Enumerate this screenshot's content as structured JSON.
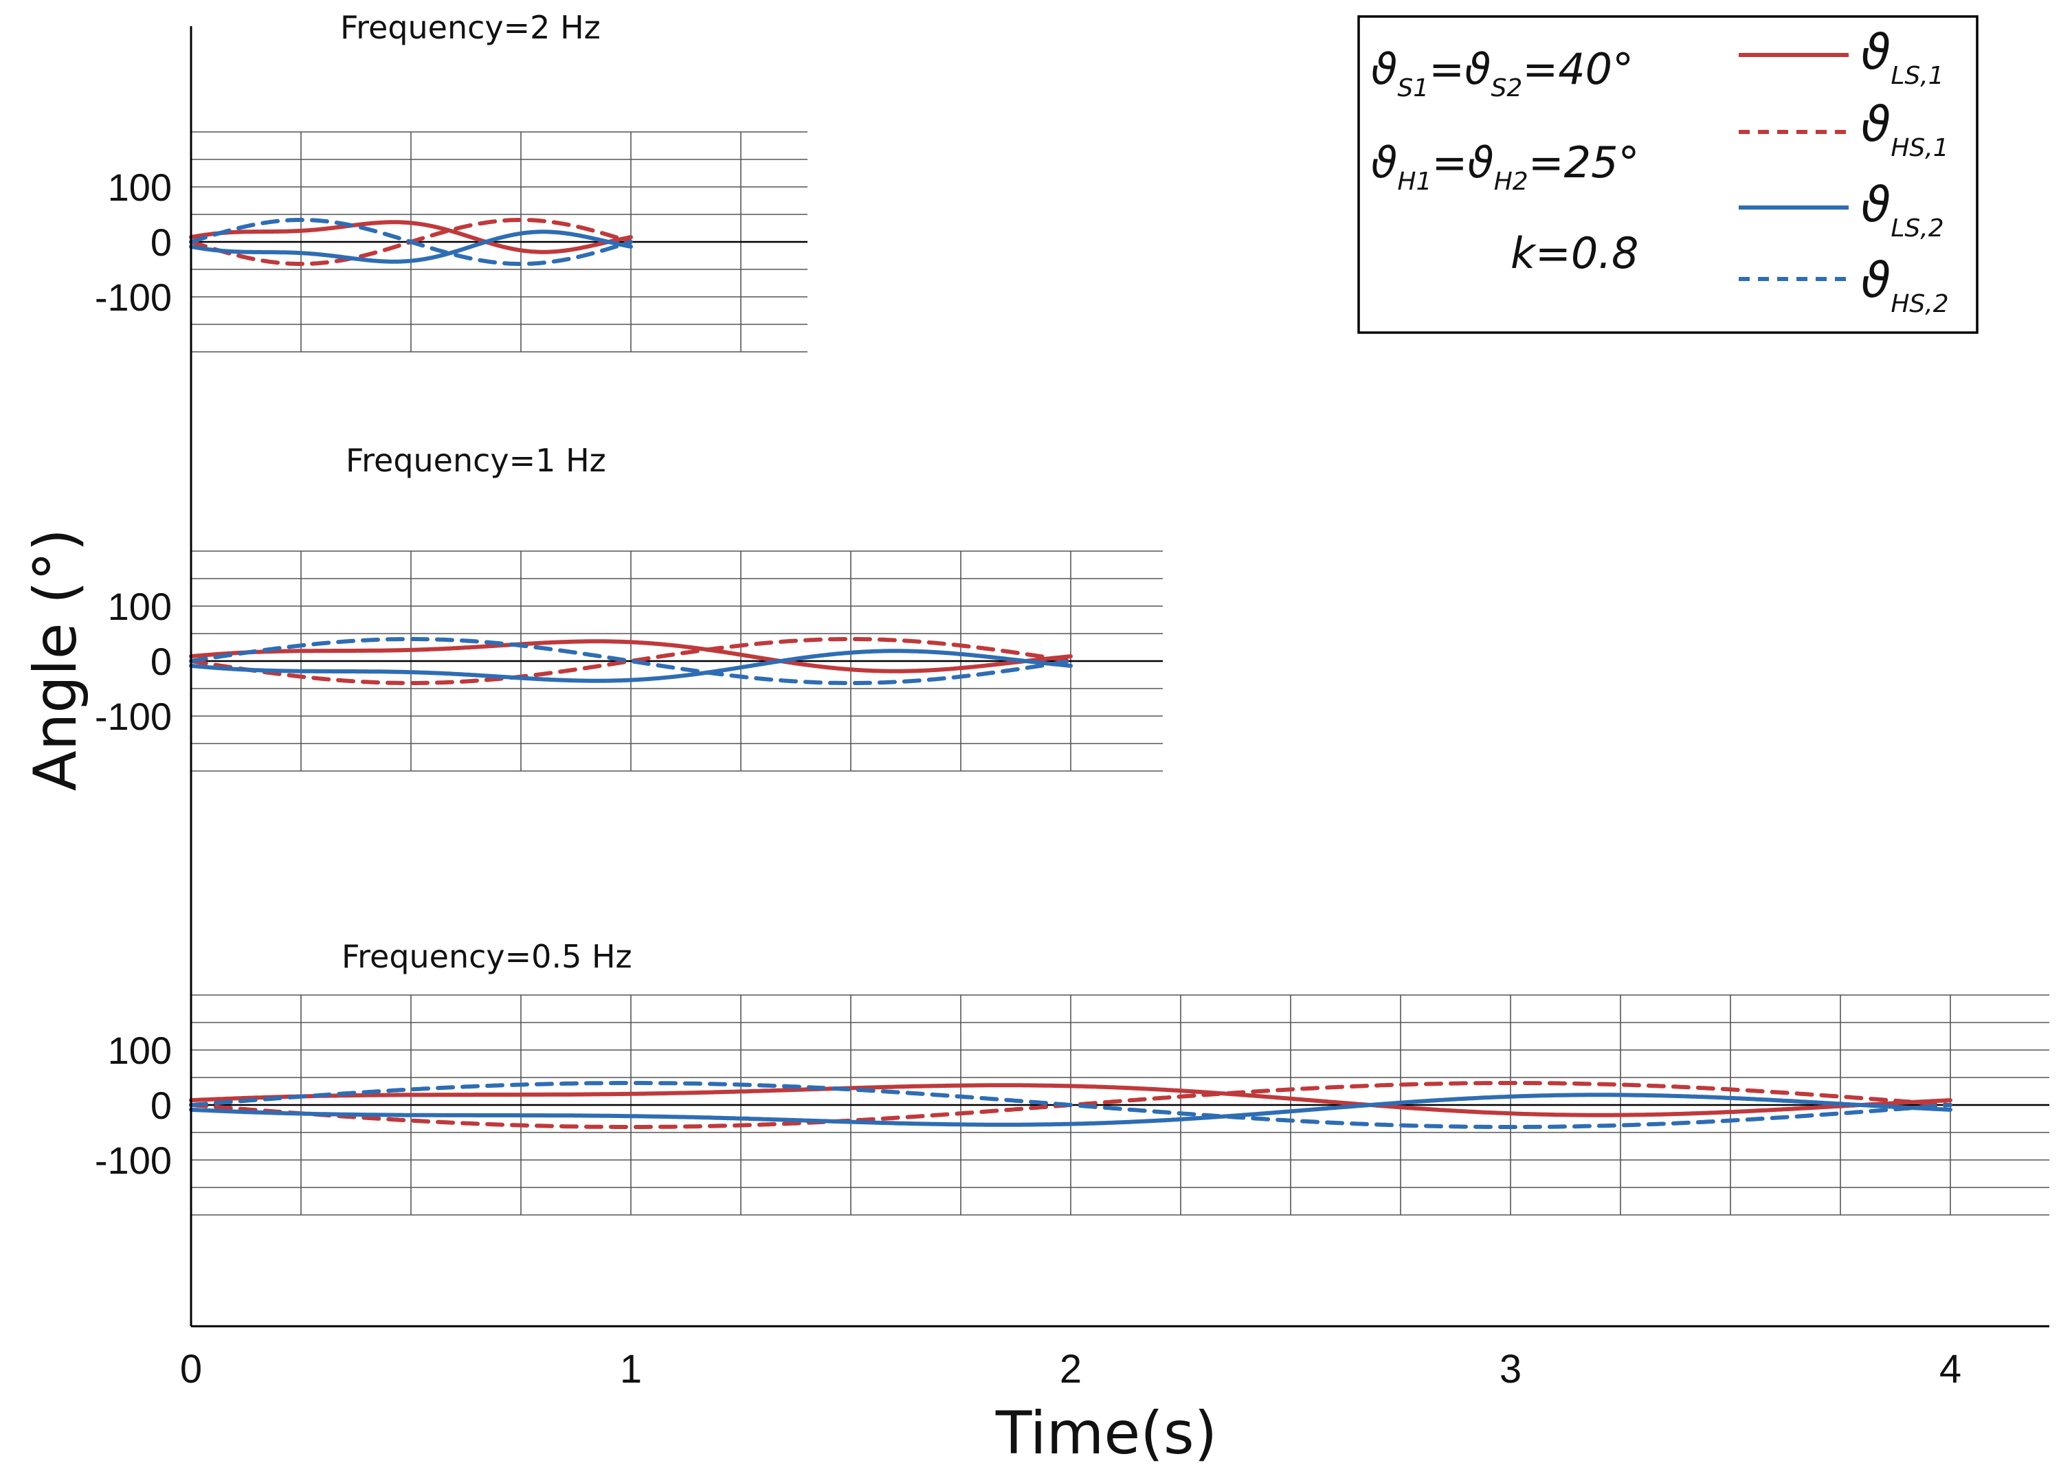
{
  "chart_data": {
    "type": "line",
    "y_axis_title": "Angle (°)",
    "x_axis_title": "Time(s)",
    "x_ticks": [
      "0",
      "1",
      "2",
      "3",
      "4"
    ],
    "grid": true,
    "parameters": {
      "line1": {
        "pre": "ϑ",
        "s1": "S1",
        "mid": "=ϑ",
        "s2": "S2",
        "post": "=40°"
      },
      "line2": {
        "pre": "ϑ",
        "s1": "H1",
        "mid": "=ϑ",
        "s2": "H2",
        "post": "=25°"
      },
      "line3": "k=0.8"
    },
    "legend": [
      {
        "symbol": "ϑ",
        "sub": "LS,1",
        "color": "#c0393b",
        "dash": "solid"
      },
      {
        "symbol": "ϑ",
        "sub": "HS,1",
        "color": "#c0393b",
        "dash": "dashed"
      },
      {
        "symbol": "ϑ",
        "sub": "LS,2",
        "color": "#2e6db4",
        "dash": "solid"
      },
      {
        "symbol": "ϑ",
        "sub": "HS,2",
        "color": "#2e6db4",
        "dash": "dashed"
      }
    ],
    "model": {
      "theta_S_deg": 40,
      "theta_H_deg": 25,
      "k": 0.8
    },
    "panels": [
      {
        "title": "Frequency=2 Hz",
        "frequency_hz": 2,
        "x_range": [
          0,
          1
        ],
        "ylim": [
          -200,
          200
        ],
        "y_tick_labels": [
          "100",
          "0",
          "-100"
        ],
        "y_tick_values": [
          100,
          0,
          -100
        ],
        "series_extrema": {
          "LS,1": [
            -20,
            44
          ],
          "HS,1": [
            -40,
            40
          ],
          "LS,2": [
            -44,
            20
          ],
          "HS,2": [
            -40,
            40
          ]
        }
      },
      {
        "title": "Frequency=1 Hz",
        "frequency_hz": 1,
        "x_range": [
          0,
          2
        ],
        "ylim": [
          -200,
          200
        ],
        "y_tick_labels": [
          "100",
          "0",
          "-100"
        ],
        "y_tick_values": [
          100,
          0,
          -100
        ],
        "series_extrema": {
          "LS,1": [
            -20,
            44
          ],
          "HS,1": [
            -40,
            40
          ],
          "LS,2": [
            -44,
            20
          ],
          "HS,2": [
            -40,
            40
          ]
        }
      },
      {
        "title": "Frequency=0.5 Hz",
        "frequency_hz": 0.5,
        "x_range": [
          0,
          4
        ],
        "ylim": [
          -200,
          200
        ],
        "y_tick_labels": [
          "100",
          "0",
          "-100"
        ],
        "y_tick_values": [
          100,
          0,
          -100
        ],
        "series_extrema": {
          "LS,1": [
            -20,
            44
          ],
          "HS,1": [
            -40,
            40
          ],
          "LS,2": [
            -44,
            20
          ],
          "HS,2": [
            -40,
            40
          ]
        }
      }
    ]
  }
}
